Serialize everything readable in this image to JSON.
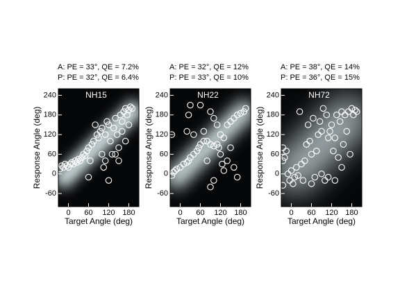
{
  "chart_data": [
    {
      "type": "scatter",
      "title": "NH15",
      "annotations": [
        "A: PE = 33°, QE = 7.2%",
        "P: PE = 32°, QE = 6.4%"
      ],
      "x_label": "Target Angle (deg)",
      "y_label": "Response Angle (deg)",
      "xlim": [
        -30,
        210
      ],
      "ylim": [
        -100,
        260
      ],
      "xticks": [
        0,
        60,
        120,
        180
      ],
      "yticks": [
        -60,
        0,
        60,
        120,
        180,
        240
      ],
      "x": [
        -25,
        -20,
        -15,
        -10,
        -5,
        0,
        5,
        10,
        15,
        20,
        25,
        30,
        35,
        40,
        45,
        50,
        55,
        60,
        65,
        70,
        75,
        80,
        85,
        90,
        95,
        100,
        105,
        110,
        115,
        120,
        125,
        130,
        135,
        140,
        145,
        150,
        155,
        160,
        165,
        170,
        175,
        180,
        185,
        190,
        120,
        60,
        100,
        110,
        140,
        150,
        160,
        170,
        180
      ],
      "y": [
        15,
        25,
        20,
        30,
        25,
        20,
        30,
        35,
        30,
        40,
        35,
        45,
        40,
        50,
        60,
        55,
        70,
        80,
        40,
        90,
        100,
        150,
        120,
        110,
        130,
        140,
        20,
        120,
        160,
        150,
        100,
        60,
        140,
        170,
        120,
        80,
        180,
        160,
        190,
        200,
        180,
        195,
        205,
        200,
        -20,
        -10,
        60,
        40,
        60,
        40,
        130,
        100,
        150
      ]
    },
    {
      "type": "scatter",
      "title": "NH22",
      "annotations": [
        "A: PE = 32°, QE = 12%",
        "P: PE = 33°, QE = 10%"
      ],
      "x_label": "Target Angle (deg)",
      "y_label": "Response Angle (deg)",
      "xlim": [
        -30,
        210
      ],
      "ylim": [
        -100,
        260
      ],
      "xticks": [
        0,
        60,
        120,
        180
      ],
      "yticks": [
        -60,
        0,
        60,
        120,
        180,
        240
      ],
      "x": [
        -25,
        -20,
        -15,
        -10,
        0,
        10,
        20,
        25,
        30,
        40,
        50,
        55,
        60,
        70,
        80,
        90,
        100,
        110,
        120,
        130,
        140,
        150,
        160,
        170,
        180,
        190,
        195,
        30,
        25,
        60,
        90,
        100,
        110,
        120,
        125,
        130,
        140,
        150,
        160,
        90,
        100,
        115,
        40,
        -25,
        20,
        80,
        70,
        170
      ],
      "y": [
        -5,
        5,
        10,
        15,
        20,
        30,
        35,
        40,
        50,
        60,
        70,
        80,
        90,
        100,
        100,
        90,
        85,
        90,
        120,
        110,
        150,
        160,
        170,
        180,
        185,
        190,
        200,
        210,
        180,
        210,
        190,
        170,
        150,
        60,
        30,
        10,
        40,
        80,
        20,
        -40,
        -20,
        80,
        120,
        120,
        130,
        40,
        130,
        -10
      ]
    },
    {
      "type": "scatter",
      "title": "NH72",
      "annotations": [
        "A: PE = 38°, QE = 14%",
        "P: PE = 36°, QE = 15%"
      ],
      "x_label": "Target Angle (deg)",
      "y_label": "Response Angle (deg)",
      "xlim": [
        -30,
        210
      ],
      "ylim": [
        -100,
        260
      ],
      "xticks": [
        0,
        60,
        120,
        180
      ],
      "yticks": [
        -60,
        0,
        60,
        120,
        180,
        240
      ],
      "x": [
        -25,
        -25,
        -25,
        -20,
        -15,
        -10,
        -5,
        0,
        5,
        10,
        15,
        20,
        25,
        30,
        35,
        40,
        45,
        50,
        55,
        60,
        65,
        70,
        75,
        80,
        85,
        90,
        95,
        100,
        105,
        110,
        115,
        120,
        125,
        130,
        135,
        140,
        145,
        150,
        155,
        160,
        165,
        170,
        175,
        180,
        185,
        190,
        195,
        110,
        130,
        150,
        60,
        90
      ],
      "y": [
        80,
        40,
        -35,
        50,
        70,
        0,
        -20,
        10,
        -30,
        -10,
        20,
        -5,
        190,
        30,
        -20,
        40,
        90,
        150,
        100,
        60,
        170,
        -10,
        70,
        120,
        160,
        130,
        200,
        -20,
        180,
        110,
        130,
        150,
        70,
        110,
        180,
        50,
        160,
        190,
        90,
        180,
        130,
        190,
        60,
        200,
        180,
        195,
        190,
        -10,
        -20,
        20,
        -30,
        0
      ]
    }
  ]
}
